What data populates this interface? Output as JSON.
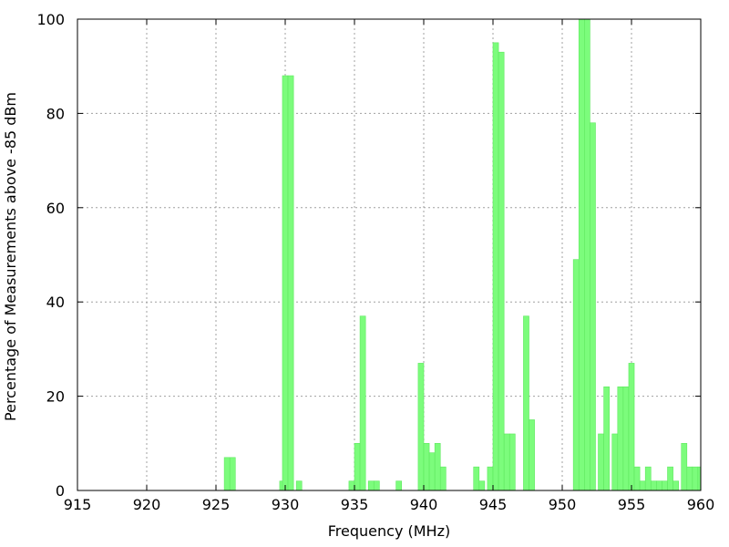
{
  "chart_data": {
    "type": "bar",
    "title": "",
    "xlabel": "Frequency (MHz)",
    "ylabel": "Percentage of Measurements above -85 dBm",
    "xlim": [
      915,
      960
    ],
    "ylim": [
      0,
      100
    ],
    "x_ticks": [
      915,
      920,
      925,
      930,
      935,
      940,
      945,
      950,
      955,
      960
    ],
    "y_ticks": [
      0,
      20,
      40,
      60,
      80,
      100
    ],
    "bar_width_mhz": 0.4,
    "grid": true,
    "bar_color": "#7cfc7c",
    "bar_edge_color": "#5ee85e",
    "x": [
      925.8,
      926.2,
      929.8,
      930.0,
      930.4,
      931.0,
      934.8,
      935.2,
      935.6,
      936.2,
      936.6,
      938.2,
      939.8,
      940.2,
      940.6,
      941.0,
      941.4,
      943.8,
      944.2,
      944.8,
      945.2,
      945.6,
      946.0,
      946.4,
      947.4,
      947.8,
      951.0,
      951.4,
      951.8,
      952.2,
      952.8,
      953.2,
      953.8,
      954.2,
      954.6,
      955.0,
      955.4,
      955.8,
      956.2,
      956.6,
      957.0,
      957.4,
      957.8,
      958.2,
      958.8,
      959.2,
      959.6,
      960.0
    ],
    "values": [
      7,
      7,
      2,
      88,
      88,
      2,
      2,
      10,
      37,
      2,
      2,
      2,
      27,
      10,
      8,
      10,
      5,
      5,
      2,
      5,
      95,
      93,
      12,
      12,
      37,
      15,
      49,
      100,
      100,
      78,
      12,
      22,
      12,
      22,
      22,
      27,
      5,
      2,
      5,
      2,
      2,
      2,
      5,
      2,
      10,
      5,
      5,
      5
    ]
  }
}
